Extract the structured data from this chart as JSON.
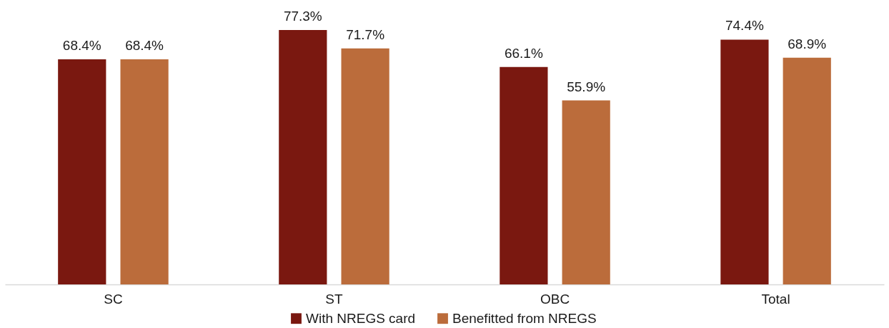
{
  "chart_data": {
    "type": "bar",
    "categories": [
      "SC",
      "ST",
      "OBC",
      "Total"
    ],
    "series": [
      {
        "name": "With NREGS card",
        "color": "#7a1810",
        "values": [
          68.4,
          77.3,
          66.1,
          74.4
        ],
        "value_labels": [
          "68.4%",
          "77.3%",
          "66.1%",
          "74.4%"
        ]
      },
      {
        "name": "Benefitted from NREGS",
        "color": "#bb6c3b",
        "values": [
          68.4,
          71.7,
          55.9,
          68.9
        ],
        "value_labels": [
          "68.4%",
          "71.7%",
          "55.9%",
          "68.9%"
        ]
      }
    ],
    "ylim": [
      0,
      86
    ],
    "tick_labels": "x",
    "grid": false,
    "legend": "bottom"
  }
}
